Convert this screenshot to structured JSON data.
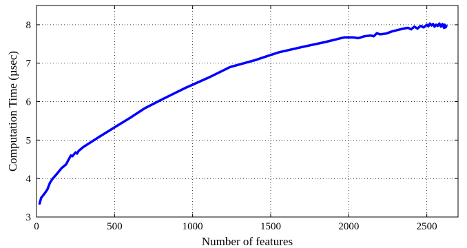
{
  "chart_data": {
    "type": "line",
    "title": "",
    "xlabel": "Number of features",
    "ylabel": "Computation Time (µsec)",
    "xlim": [
      0,
      2700
    ],
    "ylim": [
      3,
      8.5
    ],
    "xticks": [
      0,
      500,
      1000,
      1500,
      2000,
      2500
    ],
    "yticks": [
      3,
      4,
      5,
      6,
      7,
      8
    ],
    "grid": true,
    "legend": "none",
    "series": [
      {
        "color": "#0000ff",
        "x": [
          20,
          30,
          40,
          55,
          70,
          85,
          100,
          130,
          160,
          190,
          200,
          220,
          230,
          250,
          260,
          270,
          300,
          400,
          500,
          600,
          690,
          800,
          950,
          1100,
          1240,
          1400,
          1550,
          1700,
          1850,
          1970,
          2030,
          2060,
          2100,
          2140,
          2160,
          2180,
          2200,
          2240,
          2280,
          2320,
          2350,
          2380,
          2400,
          2420,
          2440,
          2460,
          2480,
          2500,
          2510,
          2520,
          2530,
          2540,
          2550,
          2560,
          2570,
          2580,
          2590,
          2600,
          2610,
          2615,
          2620,
          2625
        ],
        "y": [
          3.35,
          3.5,
          3.55,
          3.63,
          3.72,
          3.88,
          3.98,
          4.12,
          4.27,
          4.37,
          4.45,
          4.6,
          4.58,
          4.68,
          4.65,
          4.72,
          4.82,
          5.08,
          5.33,
          5.58,
          5.82,
          6.05,
          6.35,
          6.62,
          6.9,
          7.08,
          7.28,
          7.42,
          7.55,
          7.67,
          7.67,
          7.65,
          7.7,
          7.72,
          7.7,
          7.78,
          7.75,
          7.77,
          7.83,
          7.87,
          7.9,
          7.92,
          7.88,
          7.95,
          7.9,
          7.97,
          7.93,
          8.0,
          7.96,
          8.03,
          7.98,
          8.02,
          7.95,
          8.0,
          7.97,
          8.03,
          7.95,
          8.02,
          7.92,
          8.0,
          7.93,
          7.97
        ]
      }
    ]
  }
}
